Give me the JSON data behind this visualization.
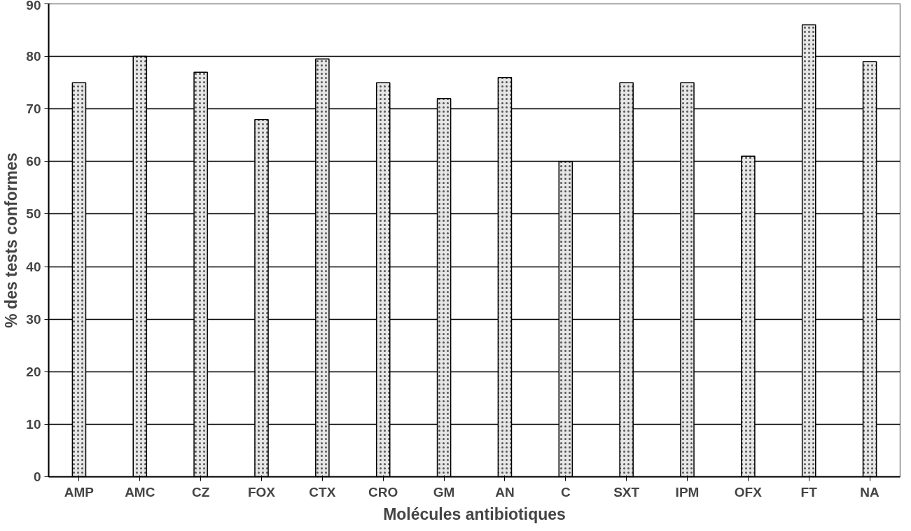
{
  "chart_data": {
    "type": "bar",
    "xlabel": "Molécules antibiotiques",
    "ylabel": "% des tests conformes",
    "categories": [
      "AMP",
      "AMC",
      "CZ",
      "FOX",
      "CTX",
      "CRO",
      "GM",
      "AN",
      "C",
      "SXT",
      "IPM",
      "OFX",
      "FT",
      "NA"
    ],
    "values": [
      75,
      80,
      77,
      68,
      79.5,
      75,
      72,
      76,
      60,
      75,
      75,
      61,
      86,
      79
    ],
    "color": "#e6e6e6",
    "ylim": [
      0,
      90
    ],
    "yticks": [
      0,
      10,
      20,
      30,
      40,
      50,
      60,
      70,
      80,
      90
    ],
    "grid": "y"
  }
}
